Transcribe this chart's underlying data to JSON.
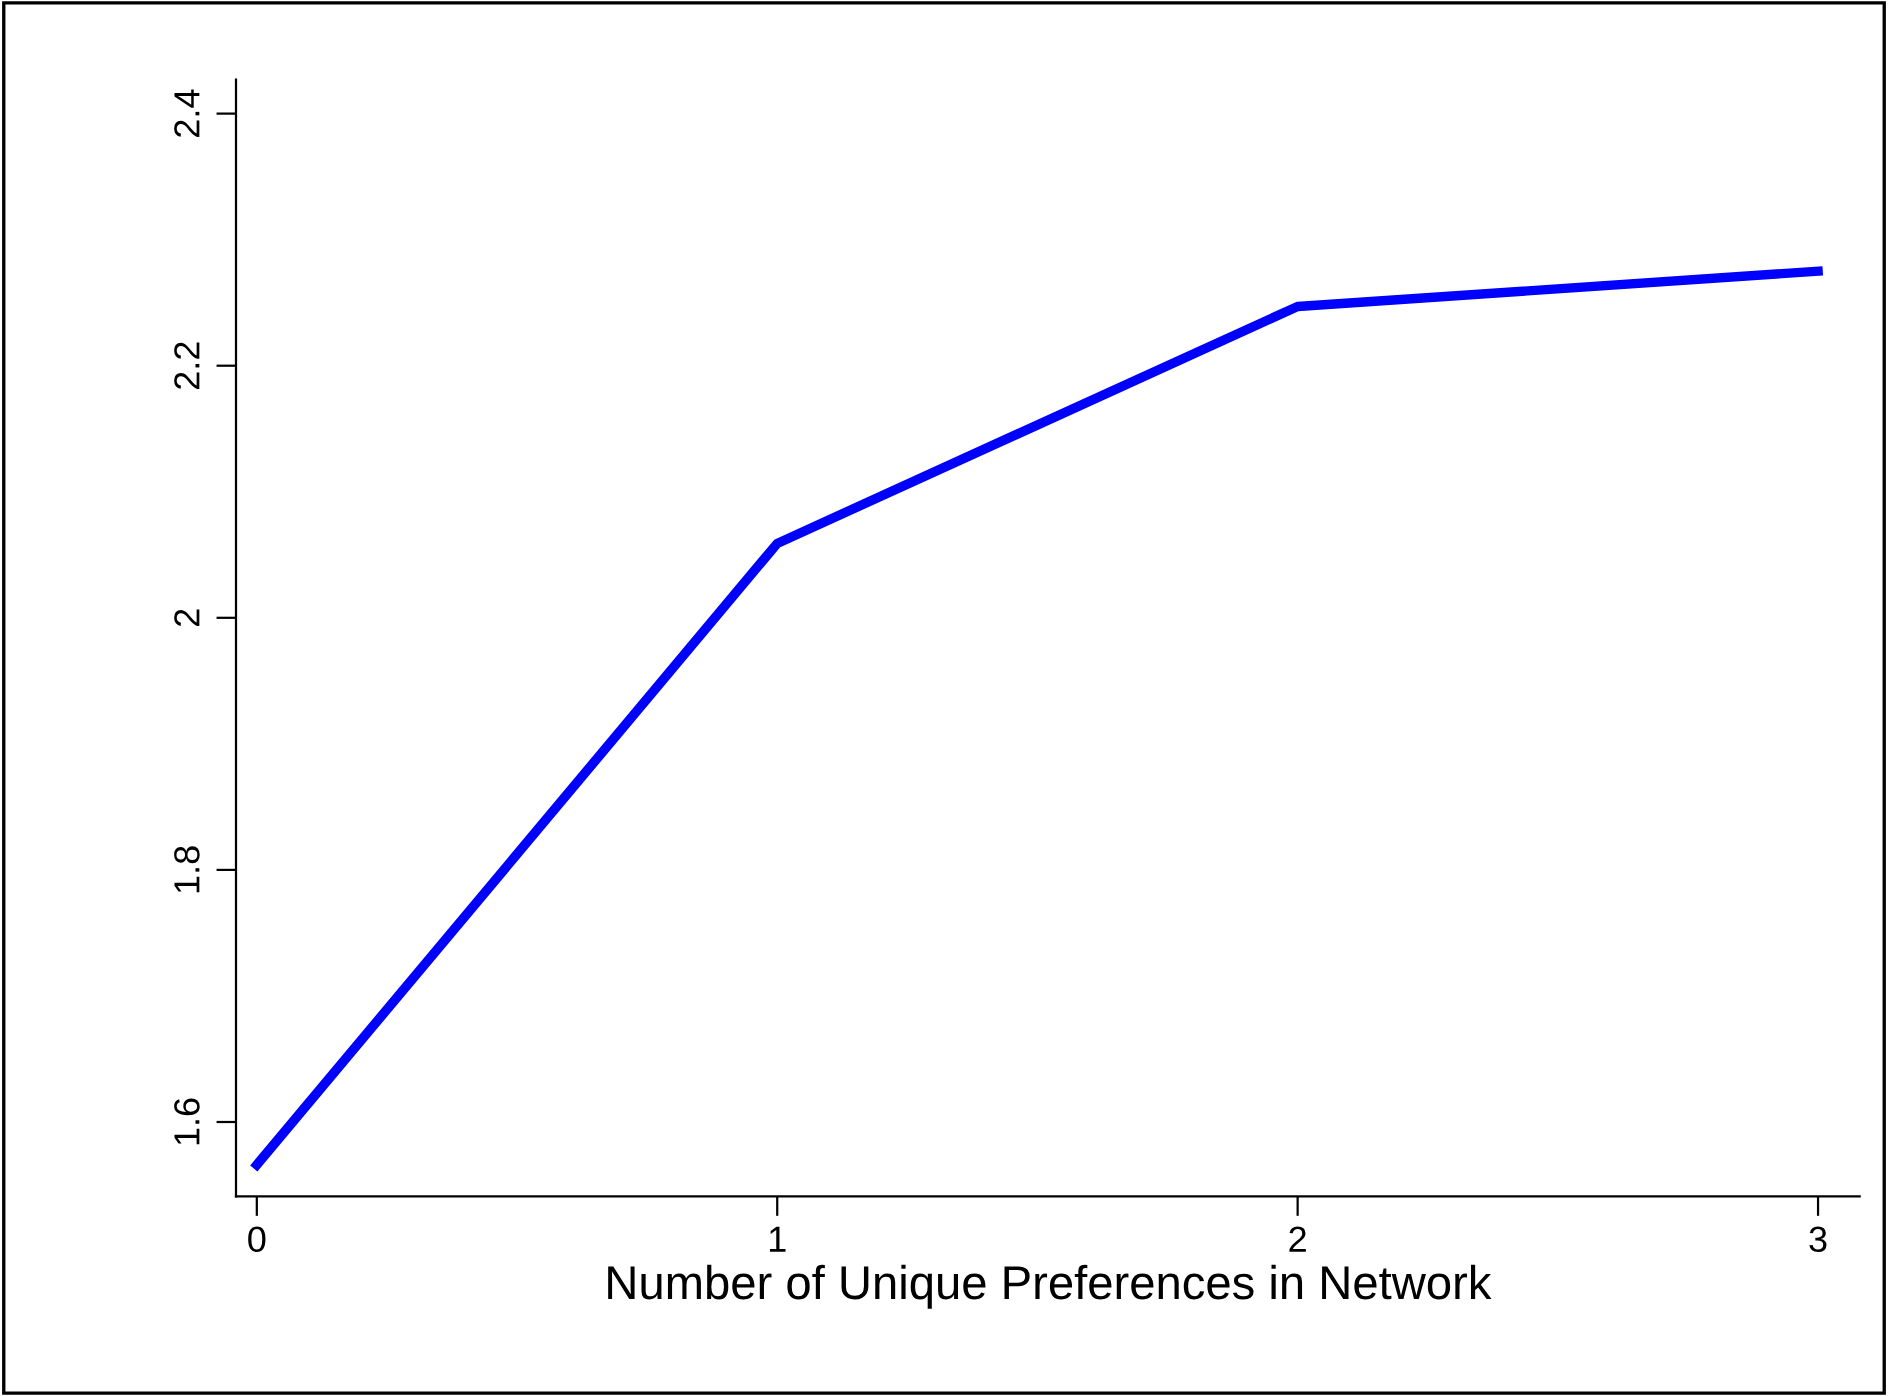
{
  "chart_data": {
    "type": "line",
    "xlabel": "Number of Unique Preferences in Network",
    "x": [
      0,
      1,
      2,
      3
    ],
    "series": [
      {
        "color": "#0000ff",
        "values": [
          1.566,
          2.059,
          2.247,
          2.275
        ]
      }
    ],
    "xlim": [
      -0.04,
      3.08
    ],
    "ylim": [
      1.541,
      2.427
    ],
    "xticks": [
      0,
      1,
      2,
      3
    ],
    "yticks": [
      1.6,
      1.8,
      {
        "value": 2,
        "label": "2"
      },
      2.2,
      2.4
    ],
    "grid": false,
    "legend": false,
    "marker": "none",
    "line_style": "solid"
  }
}
